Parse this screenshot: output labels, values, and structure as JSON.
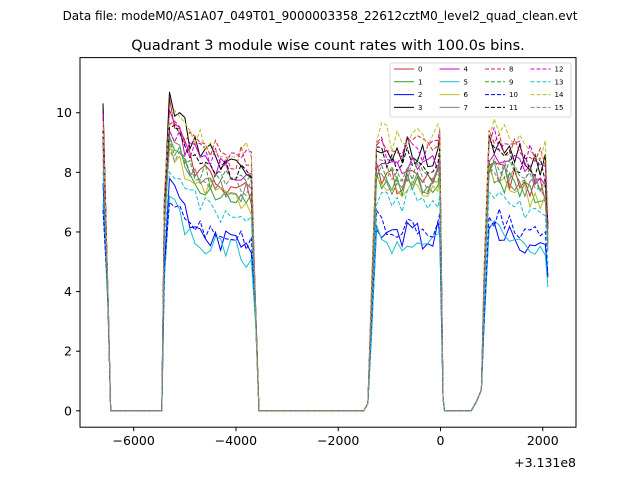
{
  "chart_data": {
    "type": "line",
    "suptitle": "Data file: modeM0/AS1A07_049T01_9000003358_22612cztM0_level2_quad_clean.evt",
    "title": "Quadrant 3 module wise count rates with 100.0s bins.",
    "xlabel": "",
    "ylabel": "",
    "x_offset_label": "+3.131e8",
    "xlim": [
      -7050,
      2650
    ],
    "ylim": [
      -0.55,
      11.85
    ],
    "xticks": [
      -6000,
      -4000,
      -2000,
      0,
      2000
    ],
    "xtick_labels": [
      "−6000",
      "−4000",
      "−2000",
      "0",
      "2000"
    ],
    "yticks": [
      0,
      2,
      4,
      6,
      8,
      10
    ],
    "ytick_labels": [
      "0",
      "2",
      "4",
      "6",
      "8",
      "10"
    ],
    "legend_loc": "upper right",
    "segments": [
      {
        "start": -6600,
        "end": -3600
      },
      {
        "start": -1400,
        "end": 0
      },
      {
        "start": 800,
        "end": 2100
      }
    ],
    "series": [
      {
        "name": "0",
        "color": "#d62728",
        "dash": false,
        "base": 7.8,
        "spike": 10.5
      },
      {
        "name": "1",
        "color": "#2ca02c",
        "dash": false,
        "base": 7.6,
        "spike": 9.2
      },
      {
        "name": "2",
        "color": "#0000ff",
        "dash": false,
        "base": 5.9,
        "spike": 7.8
      },
      {
        "name": "3",
        "color": "#000000",
        "dash": false,
        "base": 8.7,
        "spike": 10.7
      },
      {
        "name": "4",
        "color": "#cc00cc",
        "dash": false,
        "base": 8.3,
        "spike": 10.1
      },
      {
        "name": "5",
        "color": "#17becf",
        "dash": false,
        "base": 5.7,
        "spike": 7.2
      },
      {
        "name": "6",
        "color": "#bcbd22",
        "dash": false,
        "base": 7.5,
        "spike": 9.0
      },
      {
        "name": "7",
        "color": "#7f7f7f",
        "dash": false,
        "base": 7.8,
        "spike": 9.4
      },
      {
        "name": "8",
        "color": "#d62728",
        "dash": true,
        "base": 8.9,
        "spike": 9.6
      },
      {
        "name": "9",
        "color": "#2ca02c",
        "dash": true,
        "base": 8.0,
        "spike": 9.1
      },
      {
        "name": "10",
        "color": "#0000ff",
        "dash": true,
        "base": 6.2,
        "spike": 7.0
      },
      {
        "name": "11",
        "color": "#000000",
        "dash": true,
        "base": 8.5,
        "spike": 9.5
      },
      {
        "name": "12",
        "color": "#cc00cc",
        "dash": true,
        "base": 8.8,
        "spike": 9.4
      },
      {
        "name": "13",
        "color": "#17becf",
        "dash": true,
        "base": 6.9,
        "spike": 8.0
      },
      {
        "name": "14",
        "color": "#bcbd22",
        "dash": true,
        "base": 9.2,
        "spike": 9.9
      },
      {
        "name": "15",
        "color": "#7f7f7f",
        "dash": true,
        "base": 7.9,
        "spike": 8.8
      }
    ]
  }
}
